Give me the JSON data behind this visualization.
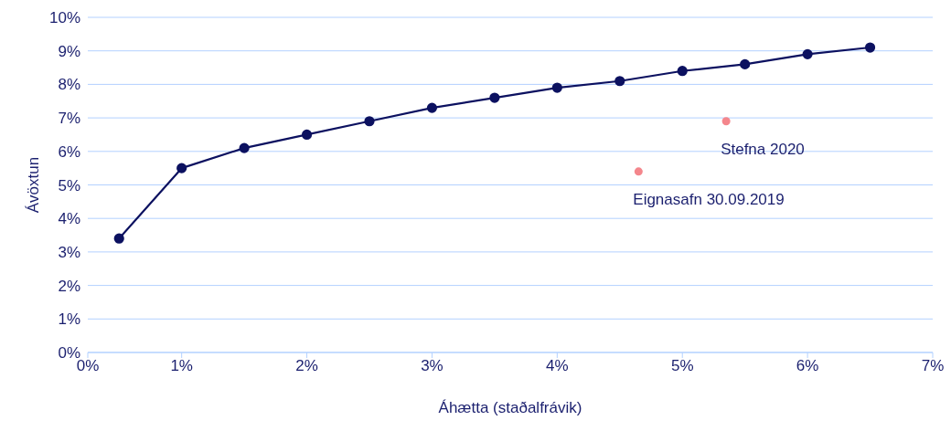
{
  "chart_data": {
    "type": "line",
    "xlabel": "Áhætta (staðalfrávik)",
    "ylabel": "Ávöxtun",
    "xlim": [
      0.25,
      7
    ],
    "xticks": [
      {
        "value": 0.25,
        "label": "0%"
      },
      {
        "value": 1,
        "label": "1%"
      },
      {
        "value": 2,
        "label": "2%"
      },
      {
        "value": 3,
        "label": "3%"
      },
      {
        "value": 4,
        "label": "4%"
      },
      {
        "value": 5,
        "label": "5%"
      },
      {
        "value": 6,
        "label": "6%"
      },
      {
        "value": 7,
        "label": "7%"
      }
    ],
    "ylim": [
      0,
      10
    ],
    "yticks": [
      {
        "value": 0,
        "label": "0%"
      },
      {
        "value": 1,
        "label": "1%"
      },
      {
        "value": 2,
        "label": "2%"
      },
      {
        "value": 3,
        "label": "3%"
      },
      {
        "value": 4,
        "label": "4%"
      },
      {
        "value": 5,
        "label": "5%"
      },
      {
        "value": 6,
        "label": "6%"
      },
      {
        "value": 7,
        "label": "7%"
      },
      {
        "value": 8,
        "label": "8%"
      },
      {
        "value": 9,
        "label": "9%"
      },
      {
        "value": 10,
        "label": "10%"
      }
    ],
    "grid": "y",
    "marker": "circle",
    "line_style": "solid",
    "series": [
      {
        "color": "#0c1160",
        "x": [
          0.5,
          1,
          1.5,
          2,
          2.5,
          3,
          3.5,
          4,
          4.5,
          5,
          5.5,
          6,
          6.5
        ],
        "values": [
          3.4,
          5.5,
          6.1,
          6.5,
          6.9,
          7.3,
          7.6,
          7.9,
          8.1,
          8.4,
          8.6,
          8.9,
          9.1
        ]
      },
      {
        "type": "scatter",
        "color": "#f4868c",
        "x": [
          4.65,
          5.35
        ],
        "values": [
          5.4,
          6.9
        ]
      }
    ],
    "annotations": [
      {
        "text": "Eignasafn 30.09.2019",
        "x": 4.65,
        "y": 5.4
      },
      {
        "text": "Stefna 2020",
        "x": 5.35,
        "y": 6.9
      }
    ]
  }
}
